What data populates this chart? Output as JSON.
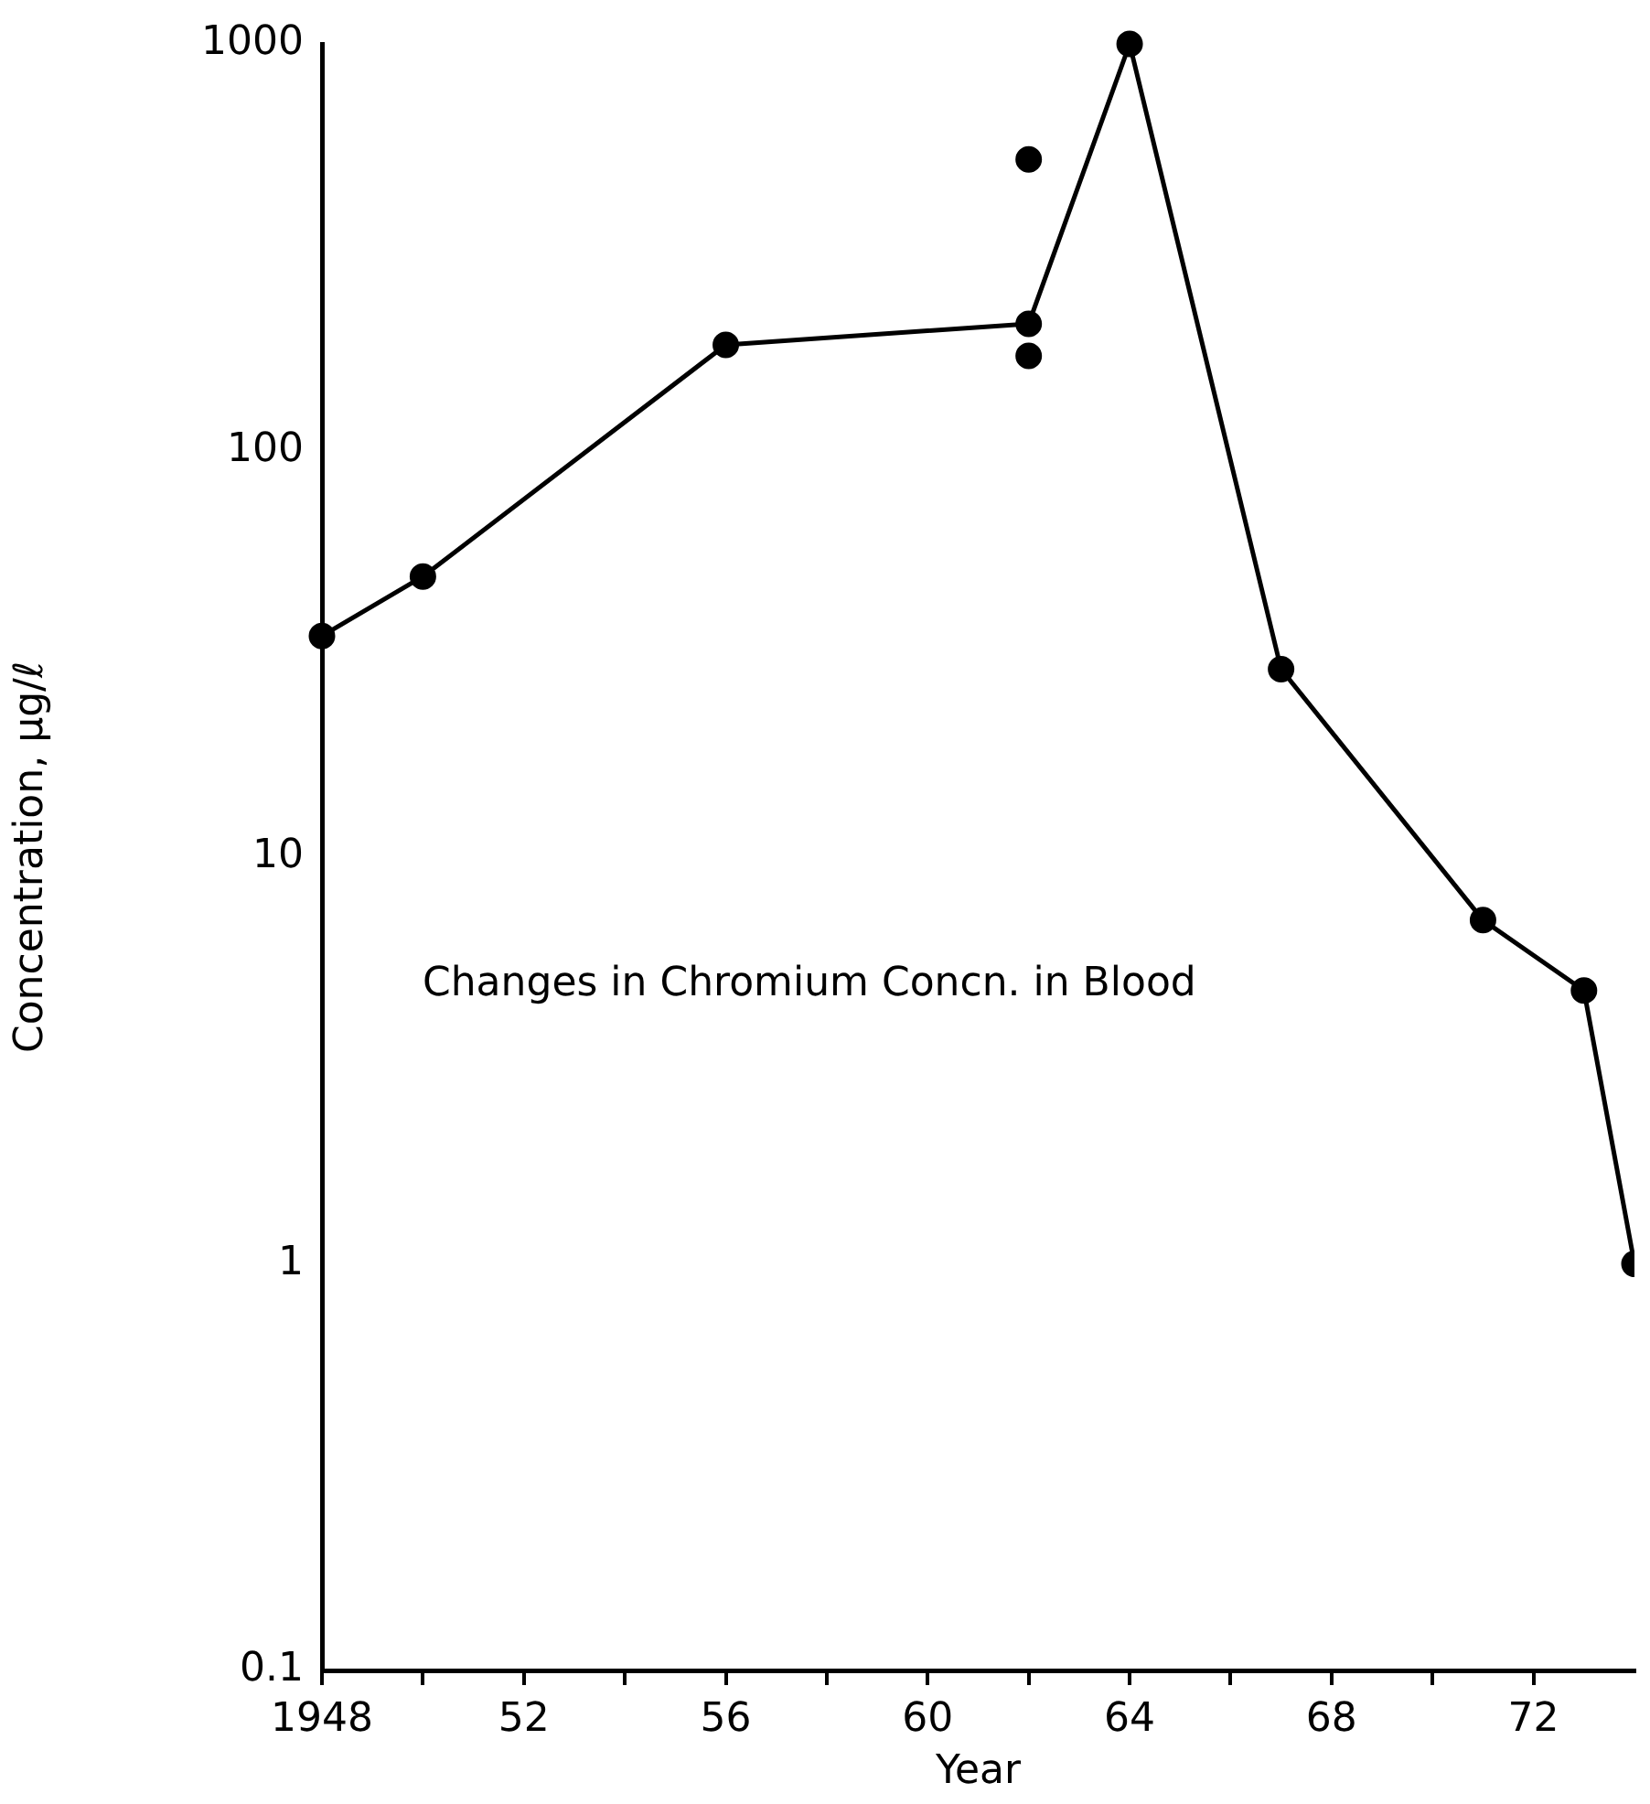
{
  "chart_data": {
    "type": "line",
    "xlabel": "Year",
    "ylabel": "Concentration, μg/ℓ",
    "annotations": [
      "Changes in Chromium Concn. in Blood"
    ],
    "xlim": [
      1948,
      1974
    ],
    "xticks": [
      {
        "value": 1948,
        "label": "1948"
      },
      {
        "value": 1950,
        "label": null
      },
      {
        "value": 1952,
        "label": "52"
      },
      {
        "value": 1954,
        "label": null
      },
      {
        "value": 1956,
        "label": "56"
      },
      {
        "value": 1958,
        "label": null
      },
      {
        "value": 1960,
        "label": "60"
      },
      {
        "value": 1962,
        "label": null
      },
      {
        "value": 1964,
        "label": "64"
      },
      {
        "value": 1966,
        "label": null
      },
      {
        "value": 1968,
        "label": "68"
      },
      {
        "value": 1970,
        "label": null
      },
      {
        "value": 1972,
        "label": "72"
      }
    ],
    "ylim": [
      0.1,
      1000
    ],
    "yticks": [
      0.1,
      1,
      10,
      100,
      1000
    ],
    "log": true,
    "grid": false,
    "legend": false,
    "marker": "circle",
    "line_style": "solid",
    "series": [
      {
        "type": "line",
        "color": "#000000",
        "x": [
          1948,
          1950,
          1956,
          1962,
          1964,
          1967,
          1971,
          1973,
          1974
        ],
        "values": [
          35,
          49,
          182,
          205,
          1000,
          29,
          7.0,
          4.7,
          1.0
        ]
      },
      {
        "type": "scatter",
        "color": "#000000",
        "x": [
          1962,
          1962
        ],
        "values": [
          520,
          171
        ]
      }
    ]
  }
}
